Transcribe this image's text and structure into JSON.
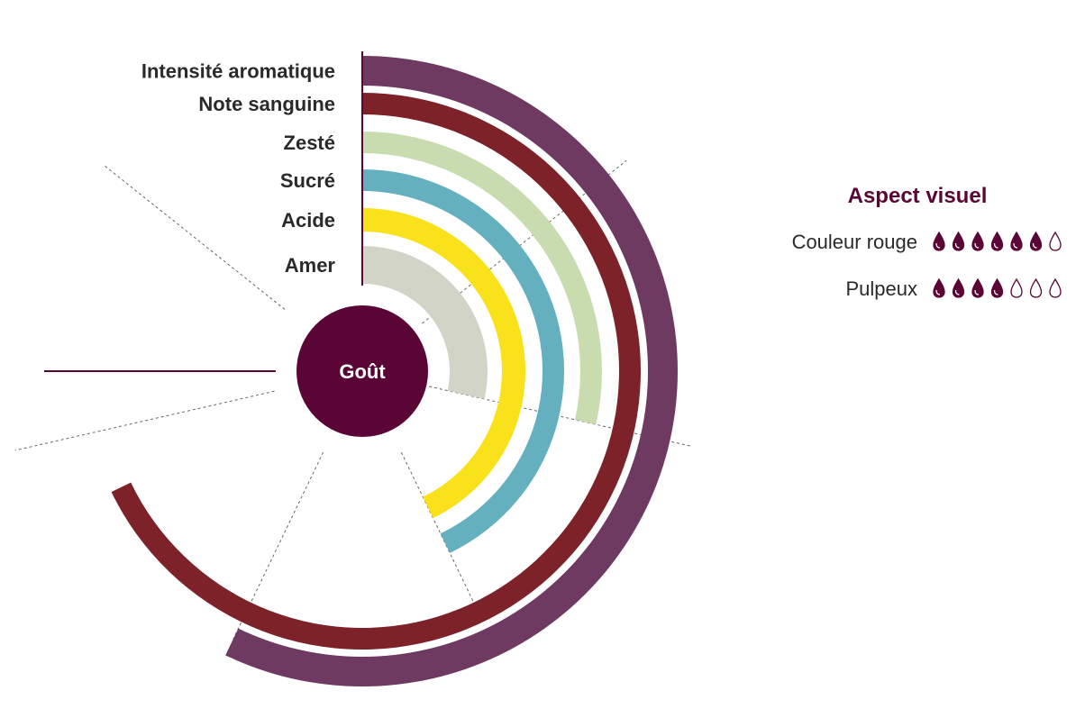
{
  "chart_data": {
    "type": "radial-bar",
    "center_label": "Goût",
    "scale_max": 7,
    "sector_divisions": 7,
    "series": [
      {
        "name": "Intensité aromatique",
        "value": 4,
        "color": "#6e3a62"
      },
      {
        "name": "Note sanguine",
        "value": 4.75,
        "color": "#7c2228"
      },
      {
        "name": "Zesté",
        "value": 2,
        "color": "#c9dcb0"
      },
      {
        "name": "Sucré",
        "value": 3,
        "color": "#64b0bf"
      },
      {
        "name": "Acide",
        "value": 3,
        "color": "#f9e11b"
      },
      {
        "name": "Amer",
        "value": 2,
        "color": "#d3d4c8"
      }
    ],
    "colors": {
      "center": "#5a0535",
      "axis": "#5a0535",
      "divider": "#666666"
    }
  },
  "aspect_visuel": {
    "title": "Aspect visuel",
    "max": 7,
    "items": [
      {
        "label": "Couleur rouge",
        "value": 6
      },
      {
        "label": "Pulpeux",
        "value": 4
      }
    ],
    "icon": "drop-icon",
    "color": "#5a0535"
  }
}
